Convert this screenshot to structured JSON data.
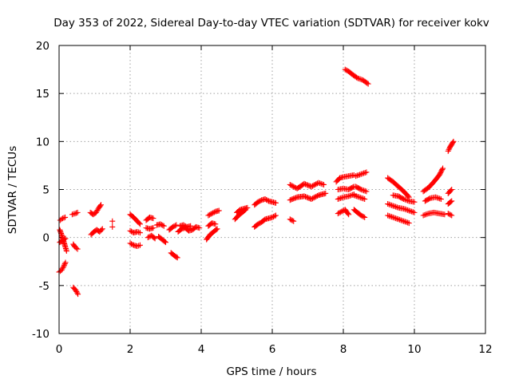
{
  "chart_data": {
    "type": "scatter",
    "title": "Day 353 of 2022, Sidereal Day-to-day VTEC variation (SDTVAR) for receiver kokv",
    "xlabel": "GPS time / hours",
    "ylabel": "SDTVAR / TECUs",
    "xlim": [
      0,
      12
    ],
    "ylim": [
      -10,
      20
    ],
    "xticks": [
      0,
      2,
      4,
      6,
      8,
      10,
      12
    ],
    "yticks": [
      -10,
      -5,
      0,
      5,
      10,
      15,
      20
    ],
    "xtick_labels": [
      "0",
      "2",
      "4",
      "6",
      "8",
      "10",
      "12"
    ],
    "ytick_labels": [
      "-10",
      "-5",
      "0",
      "5",
      "10",
      "15",
      "20"
    ],
    "grid": true,
    "marker": "+",
    "color": "#ff0000",
    "series": [
      {
        "name": "SDTVAR",
        "segments": [
          [
            [
              0.0,
              -3.6
            ],
            [
              0.07,
              -3.4
            ],
            [
              0.13,
              -3.0
            ],
            [
              0.18,
              -2.6
            ]
          ],
          [
            [
              0.02,
              0.8
            ],
            [
              0.07,
              0.3
            ],
            [
              0.12,
              -0.3
            ],
            [
              0.17,
              -0.9
            ],
            [
              0.21,
              -1.4
            ]
          ],
          [
            [
              0.03,
              1.8
            ],
            [
              0.1,
              2.0
            ],
            [
              0.17,
              2.1
            ]
          ],
          [
            [
              0.02,
              -0.5
            ],
            [
              0.1,
              -0.3
            ],
            [
              0.18,
              -0.1
            ]
          ],
          [
            [
              0.37,
              2.4
            ],
            [
              0.45,
              2.5
            ],
            [
              0.52,
              2.6
            ]
          ],
          [
            [
              0.4,
              -0.7
            ],
            [
              0.45,
              -1.0
            ],
            [
              0.52,
              -1.2
            ]
          ],
          [
            [
              0.4,
              -5.2
            ],
            [
              0.47,
              -5.5
            ],
            [
              0.53,
              -5.9
            ]
          ],
          [
            [
              0.88,
              2.6
            ],
            [
              0.96,
              2.4
            ],
            [
              1.04,
              2.6
            ],
            [
              1.12,
              3.1
            ],
            [
              1.18,
              3.4
            ]
          ],
          [
            [
              0.9,
              0.3
            ],
            [
              0.98,
              0.6
            ],
            [
              1.06,
              0.8
            ],
            [
              1.14,
              0.6
            ],
            [
              1.22,
              0.9
            ]
          ],
          [
            [
              1.5,
              1.7
            ]
          ],
          [
            [
              1.5,
              1.1
            ]
          ],
          [
            [
              2.0,
              2.4
            ],
            [
              2.1,
              2.1
            ],
            [
              2.2,
              1.7
            ],
            [
              2.28,
              1.4
            ]
          ],
          [
            [
              2.0,
              0.7
            ],
            [
              2.1,
              0.5
            ],
            [
              2.2,
              0.6
            ],
            [
              2.28,
              0.5
            ]
          ],
          [
            [
              2.0,
              -0.6
            ],
            [
              2.1,
              -0.8
            ],
            [
              2.2,
              -0.9
            ],
            [
              2.28,
              -0.8
            ]
          ],
          [
            [
              2.45,
              1.8
            ],
            [
              2.55,
              2.1
            ],
            [
              2.65,
              2.0
            ]
          ],
          [
            [
              2.45,
              1.0
            ],
            [
              2.55,
              0.9
            ],
            [
              2.65,
              1.0
            ]
          ],
          [
            [
              2.5,
              0.0
            ],
            [
              2.6,
              0.2
            ],
            [
              2.7,
              -0.1
            ]
          ],
          [
            [
              2.75,
              1.3
            ],
            [
              2.85,
              1.4
            ],
            [
              2.95,
              1.2
            ]
          ],
          [
            [
              2.8,
              0.1
            ],
            [
              2.9,
              -0.2
            ],
            [
              3.0,
              -0.5
            ]
          ],
          [
            [
              3.1,
              0.8
            ],
            [
              3.2,
              1.1
            ],
            [
              3.3,
              1.3
            ]
          ],
          [
            [
              3.15,
              -1.6
            ],
            [
              3.25,
              -1.9
            ],
            [
              3.33,
              -2.1
            ]
          ],
          [
            [
              3.35,
              0.6
            ],
            [
              3.45,
              0.9
            ],
            [
              3.55,
              1.0
            ],
            [
              3.65,
              0.7
            ],
            [
              3.75,
              0.8
            ],
            [
              3.85,
              1.1
            ],
            [
              3.95,
              1.0
            ]
          ],
          [
            [
              3.4,
              1.2
            ],
            [
              3.5,
              1.3
            ],
            [
              3.6,
              1.1
            ],
            [
              3.7,
              1.2
            ]
          ],
          [
            [
              4.15,
              -0.2
            ],
            [
              4.25,
              0.3
            ],
            [
              4.35,
              0.6
            ],
            [
              4.45,
              0.9
            ]
          ],
          [
            [
              4.2,
              1.2
            ],
            [
              4.3,
              1.5
            ],
            [
              4.4,
              1.4
            ]
          ],
          [
            [
              4.2,
              2.3
            ],
            [
              4.3,
              2.5
            ],
            [
              4.4,
              2.7
            ],
            [
              4.5,
              2.8
            ]
          ],
          [
            [
              4.95,
              1.9
            ],
            [
              5.05,
              2.3
            ],
            [
              5.15,
              2.6
            ],
            [
              5.25,
              2.9
            ]
          ],
          [
            [
              5.0,
              2.6
            ],
            [
              5.1,
              2.9
            ],
            [
              5.2,
              3.0
            ],
            [
              5.3,
              3.1
            ]
          ],
          [
            [
              5.5,
              3.4
            ],
            [
              5.6,
              3.7
            ],
            [
              5.7,
              3.9
            ],
            [
              5.8,
              4.0
            ],
            [
              5.9,
              3.8
            ],
            [
              6.0,
              3.7
            ],
            [
              6.1,
              3.6
            ]
          ],
          [
            [
              5.5,
              1.1
            ],
            [
              5.6,
              1.4
            ],
            [
              5.7,
              1.6
            ],
            [
              5.8,
              1.9
            ],
            [
              5.9,
              2.0
            ],
            [
              6.0,
              2.1
            ],
            [
              6.1,
              2.3
            ]
          ],
          [
            [
              6.5,
              1.9
            ],
            [
              6.6,
              1.7
            ]
          ],
          [
            [
              6.5,
              3.9
            ],
            [
              6.7,
              4.2
            ],
            [
              6.9,
              4.3
            ],
            [
              7.1,
              4.0
            ],
            [
              7.3,
              4.4
            ],
            [
              7.5,
              4.6
            ]
          ],
          [
            [
              6.5,
              5.5
            ],
            [
              6.7,
              5.1
            ],
            [
              6.9,
              5.6
            ],
            [
              7.1,
              5.3
            ],
            [
              7.3,
              5.7
            ],
            [
              7.45,
              5.5
            ]
          ],
          [
            [
              7.85,
              2.5
            ],
            [
              7.95,
              2.7
            ],
            [
              8.05,
              2.9
            ],
            [
              8.15,
              2.4
            ]
          ],
          [
            [
              7.85,
              4.0
            ],
            [
              8.0,
              4.2
            ],
            [
              8.15,
              4.3
            ],
            [
              8.3,
              4.5
            ]
          ],
          [
            [
              7.85,
              5.0
            ],
            [
              8.0,
              5.1
            ],
            [
              8.15,
              5.0
            ],
            [
              8.3,
              5.3
            ]
          ],
          [
            [
              7.8,
              5.8
            ],
            [
              7.9,
              6.2
            ],
            [
              8.0,
              6.3
            ],
            [
              8.15,
              6.4
            ],
            [
              8.3,
              6.5
            ]
          ],
          [
            [
              8.05,
              17.5
            ],
            [
              8.15,
              17.3
            ],
            [
              8.25,
              17.0
            ],
            [
              8.4,
              16.6
            ],
            [
              8.55,
              16.4
            ],
            [
              8.7,
              16.0
            ]
          ],
          [
            [
              8.3,
              2.9
            ],
            [
              8.4,
              2.6
            ],
            [
              8.5,
              2.3
            ],
            [
              8.6,
              2.1
            ]
          ],
          [
            [
              8.3,
              4.4
            ],
            [
              8.45,
              4.2
            ],
            [
              8.6,
              4.0
            ]
          ],
          [
            [
              8.35,
              5.3
            ],
            [
              8.5,
              5.0
            ],
            [
              8.65,
              4.8
            ]
          ],
          [
            [
              8.35,
              6.4
            ],
            [
              8.5,
              6.6
            ],
            [
              8.65,
              6.8
            ]
          ],
          [
            [
              9.25,
              6.2
            ],
            [
              9.4,
              5.8
            ],
            [
              9.55,
              5.3
            ],
            [
              9.7,
              4.8
            ],
            [
              9.85,
              4.2
            ]
          ],
          [
            [
              9.25,
              3.5
            ],
            [
              9.4,
              3.3
            ],
            [
              9.55,
              3.1
            ],
            [
              9.7,
              3.0
            ],
            [
              9.85,
              2.8
            ],
            [
              10.0,
              2.6
            ]
          ],
          [
            [
              9.25,
              2.3
            ],
            [
              9.4,
              2.1
            ],
            [
              9.55,
              1.9
            ],
            [
              9.7,
              1.7
            ],
            [
              9.85,
              1.5
            ]
          ],
          [
            [
              9.4,
              4.4
            ],
            [
              9.55,
              4.3
            ],
            [
              9.7,
              4.0
            ],
            [
              9.85,
              3.8
            ],
            [
              10.0,
              3.7
            ]
          ],
          [
            [
              10.25,
              4.8
            ],
            [
              10.4,
              5.2
            ],
            [
              10.55,
              5.8
            ],
            [
              10.7,
              6.5
            ],
            [
              10.8,
              7.2
            ]
          ],
          [
            [
              10.25,
              2.3
            ],
            [
              10.4,
              2.5
            ],
            [
              10.55,
              2.6
            ],
            [
              10.7,
              2.5
            ],
            [
              10.85,
              2.4
            ]
          ],
          [
            [
              10.3,
              3.8
            ],
            [
              10.45,
              4.1
            ],
            [
              10.6,
              4.2
            ],
            [
              10.75,
              4.0
            ]
          ],
          [
            [
              10.95,
              2.5
            ],
            [
              11.05,
              2.3
            ]
          ],
          [
            [
              10.95,
              3.5
            ],
            [
              11.05,
              3.8
            ]
          ],
          [
            [
              10.95,
              4.6
            ],
            [
              11.05,
              5.0
            ]
          ],
          [
            [
              10.95,
              9.0
            ],
            [
              11.0,
              9.4
            ],
            [
              11.05,
              9.7
            ],
            [
              11.1,
              10.0
            ]
          ]
        ]
      }
    ]
  }
}
